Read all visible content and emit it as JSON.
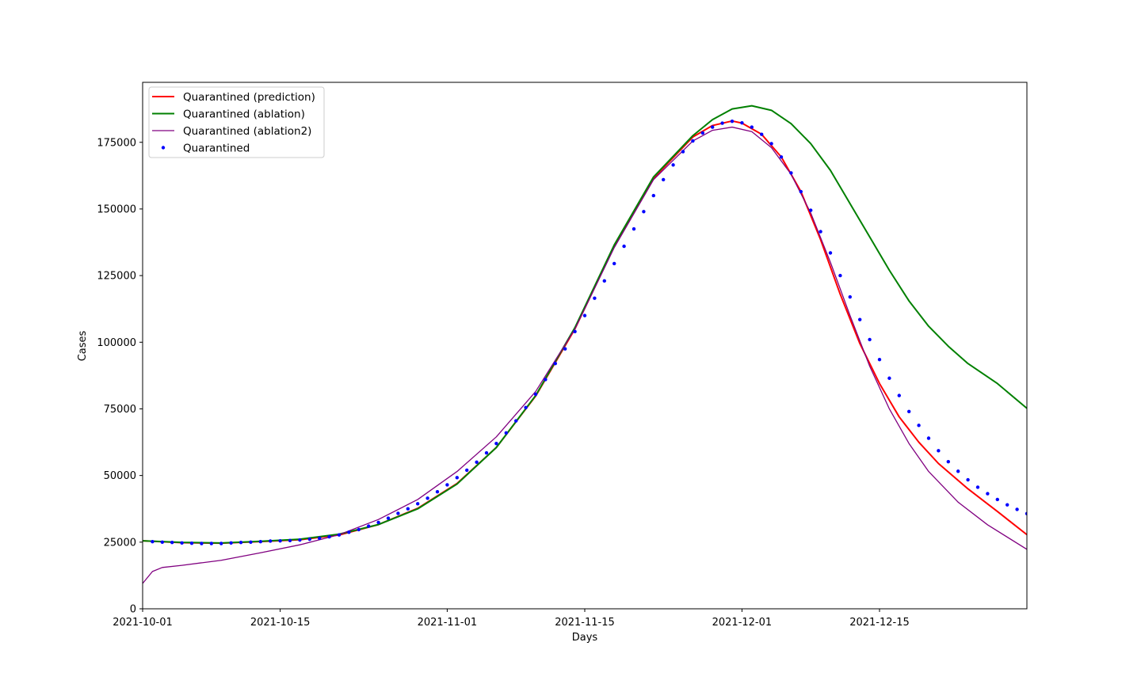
{
  "chart_data": {
    "type": "line",
    "title": "",
    "xlabel": "Days",
    "ylabel": "Cases",
    "x_start": "2021-10-01",
    "x_end": "2021-12-30",
    "xlim": [
      "2021-10-01",
      "2021-12-30"
    ],
    "ylim": [
      0,
      197500
    ],
    "x_ticks": [
      "2021-10-01",
      "2021-10-15",
      "2021-11-01",
      "2021-11-15",
      "2021-12-01",
      "2021-12-15"
    ],
    "y_ticks": [
      0,
      25000,
      50000,
      75000,
      100000,
      125000,
      150000,
      175000
    ],
    "y_tick_labels": [
      "0",
      "25000",
      "50000",
      "75000",
      "100000",
      "125000",
      "150000",
      "175000"
    ],
    "grid": false,
    "legend_position": "top-left",
    "series": [
      {
        "name": "Quarantined (prediction)",
        "style": "line",
        "color": "#ff0000",
        "points": [
          [
            "2021-10-01",
            25500
          ],
          [
            "2021-10-05",
            24800
          ],
          [
            "2021-10-09",
            24600
          ],
          [
            "2021-10-13",
            25200
          ],
          [
            "2021-10-17",
            25900
          ],
          [
            "2021-10-21",
            27700
          ],
          [
            "2021-10-25",
            31600
          ],
          [
            "2021-10-29",
            37700
          ],
          [
            "2021-11-02",
            47000
          ],
          [
            "2021-11-06",
            60500
          ],
          [
            "2021-11-10",
            79800
          ],
          [
            "2021-11-14",
            105000
          ],
          [
            "2021-11-18",
            136000
          ],
          [
            "2021-11-22",
            161500
          ],
          [
            "2021-11-26",
            177000
          ],
          [
            "2021-11-28",
            181300
          ],
          [
            "2021-11-30",
            183000
          ],
          [
            "2021-12-01",
            182200
          ],
          [
            "2021-12-03",
            178000
          ],
          [
            "2021-12-05",
            169500
          ],
          [
            "2021-12-07",
            156500
          ],
          [
            "2021-12-09",
            138500
          ],
          [
            "2021-12-11",
            118000
          ],
          [
            "2021-12-13",
            99500
          ],
          [
            "2021-12-15",
            84500
          ],
          [
            "2021-12-17",
            72000
          ],
          [
            "2021-12-19",
            62500
          ],
          [
            "2021-12-21",
            54500
          ],
          [
            "2021-12-24",
            45000
          ],
          [
            "2021-12-27",
            36500
          ],
          [
            "2021-12-30",
            27800
          ]
        ]
      },
      {
        "name": "Quarantined (ablation)",
        "style": "line",
        "color": "#008000",
        "points": [
          [
            "2021-10-01",
            25500
          ],
          [
            "2021-10-05",
            24900
          ],
          [
            "2021-10-09",
            24700
          ],
          [
            "2021-10-13",
            25300
          ],
          [
            "2021-10-17",
            26100
          ],
          [
            "2021-10-21",
            28000
          ],
          [
            "2021-10-25",
            31600
          ],
          [
            "2021-10-29",
            37500
          ],
          [
            "2021-11-02",
            46800
          ],
          [
            "2021-11-06",
            60500
          ],
          [
            "2021-11-10",
            80000
          ],
          [
            "2021-11-14",
            105500
          ],
          [
            "2021-11-18",
            136500
          ],
          [
            "2021-11-22",
            162000
          ],
          [
            "2021-11-26",
            177500
          ],
          [
            "2021-11-28",
            183500
          ],
          [
            "2021-11-30",
            187500
          ],
          [
            "2021-12-02",
            188700
          ],
          [
            "2021-12-04",
            187000
          ],
          [
            "2021-12-06",
            182000
          ],
          [
            "2021-12-08",
            174500
          ],
          [
            "2021-12-10",
            164500
          ],
          [
            "2021-12-12",
            152000
          ],
          [
            "2021-12-14",
            139500
          ],
          [
            "2021-12-16",
            127000
          ],
          [
            "2021-12-18",
            115500
          ],
          [
            "2021-12-20",
            106000
          ],
          [
            "2021-12-22",
            98500
          ],
          [
            "2021-12-24",
            92000
          ],
          [
            "2021-12-27",
            84500
          ],
          [
            "2021-12-30",
            75200
          ]
        ]
      },
      {
        "name": "Quarantined (ablation2)",
        "style": "line",
        "color": "#800080",
        "points": [
          [
            "2021-10-01",
            9500
          ],
          [
            "2021-10-02",
            14000
          ],
          [
            "2021-10-03",
            15500
          ],
          [
            "2021-10-05",
            16300
          ],
          [
            "2021-10-09",
            18200
          ],
          [
            "2021-10-13",
            21000
          ],
          [
            "2021-10-17",
            24000
          ],
          [
            "2021-10-21",
            27800
          ],
          [
            "2021-10-25",
            33500
          ],
          [
            "2021-10-29",
            41000
          ],
          [
            "2021-11-02",
            51500
          ],
          [
            "2021-11-06",
            64500
          ],
          [
            "2021-11-10",
            81500
          ],
          [
            "2021-11-14",
            105000
          ],
          [
            "2021-11-18",
            135500
          ],
          [
            "2021-11-22",
            161000
          ],
          [
            "2021-11-26",
            175500
          ],
          [
            "2021-11-28",
            179500
          ],
          [
            "2021-11-30",
            180700
          ],
          [
            "2021-12-02",
            179000
          ],
          [
            "2021-12-04",
            173000
          ],
          [
            "2021-12-06",
            163000
          ],
          [
            "2021-12-08",
            148500
          ],
          [
            "2021-12-10",
            130000
          ],
          [
            "2021-12-12",
            110000
          ],
          [
            "2021-12-14",
            91000
          ],
          [
            "2021-12-16",
            75000
          ],
          [
            "2021-12-18",
            62000
          ],
          [
            "2021-12-20",
            51500
          ],
          [
            "2021-12-23",
            40000
          ],
          [
            "2021-12-26",
            31500
          ],
          [
            "2021-12-30",
            22300
          ]
        ]
      },
      {
        "name": "Quarantined",
        "style": "dots",
        "color": "#0000ff",
        "points": [
          [
            "2021-10-02",
            25200
          ],
          [
            "2021-10-03",
            25000
          ],
          [
            "2021-10-04",
            24900
          ],
          [
            "2021-10-05",
            24700
          ],
          [
            "2021-10-06",
            24600
          ],
          [
            "2021-10-07",
            24500
          ],
          [
            "2021-10-08",
            24500
          ],
          [
            "2021-10-09",
            24500
          ],
          [
            "2021-10-10",
            24700
          ],
          [
            "2021-10-11",
            24900
          ],
          [
            "2021-10-12",
            25000
          ],
          [
            "2021-10-13",
            25200
          ],
          [
            "2021-10-14",
            25400
          ],
          [
            "2021-10-15",
            25500
          ],
          [
            "2021-10-16",
            25600
          ],
          [
            "2021-10-17",
            25800
          ],
          [
            "2021-10-18",
            26100
          ],
          [
            "2021-10-19",
            26500
          ],
          [
            "2021-10-20",
            27000
          ],
          [
            "2021-10-21",
            27700
          ],
          [
            "2021-10-22",
            28700
          ],
          [
            "2021-10-23",
            29700
          ],
          [
            "2021-10-24",
            31000
          ],
          [
            "2021-10-25",
            32400
          ],
          [
            "2021-10-26",
            34000
          ],
          [
            "2021-10-27",
            35800
          ],
          [
            "2021-10-28",
            37500
          ],
          [
            "2021-10-29",
            39400
          ],
          [
            "2021-10-30",
            41500
          ],
          [
            "2021-10-31",
            43900
          ],
          [
            "2021-11-01",
            46500
          ],
          [
            "2021-11-02",
            49200
          ],
          [
            "2021-11-03",
            52000
          ],
          [
            "2021-11-04",
            55000
          ],
          [
            "2021-11-05",
            58500
          ],
          [
            "2021-11-06",
            62000
          ],
          [
            "2021-11-07",
            66000
          ],
          [
            "2021-11-08",
            70500
          ],
          [
            "2021-11-09",
            75500
          ],
          [
            "2021-11-10",
            80500
          ],
          [
            "2021-11-11",
            86000
          ],
          [
            "2021-11-12",
            92000
          ],
          [
            "2021-11-13",
            97500
          ],
          [
            "2021-11-14",
            104000
          ],
          [
            "2021-11-15",
            110000
          ],
          [
            "2021-11-16",
            116500
          ],
          [
            "2021-11-17",
            123000
          ],
          [
            "2021-11-18",
            129500
          ],
          [
            "2021-11-19",
            136000
          ],
          [
            "2021-11-20",
            142500
          ],
          [
            "2021-11-21",
            149000
          ],
          [
            "2021-11-22",
            155000
          ],
          [
            "2021-11-23",
            161000
          ],
          [
            "2021-11-24",
            166500
          ],
          [
            "2021-11-25",
            171500
          ],
          [
            "2021-11-26",
            175500
          ],
          [
            "2021-11-27",
            178500
          ],
          [
            "2021-11-28",
            180700
          ],
          [
            "2021-11-29",
            182200
          ],
          [
            "2021-11-30",
            182900
          ],
          [
            "2021-12-01",
            182300
          ],
          [
            "2021-12-02",
            180700
          ],
          [
            "2021-12-03",
            178000
          ],
          [
            "2021-12-04",
            174500
          ],
          [
            "2021-12-05",
            169500
          ],
          [
            "2021-12-06",
            163500
          ],
          [
            "2021-12-07",
            156500
          ],
          [
            "2021-12-08",
            149500
          ],
          [
            "2021-12-09",
            141500
          ],
          [
            "2021-12-10",
            133500
          ],
          [
            "2021-12-11",
            125000
          ],
          [
            "2021-12-12",
            117000
          ],
          [
            "2021-12-13",
            108500
          ],
          [
            "2021-12-14",
            101000
          ],
          [
            "2021-12-15",
            93500
          ],
          [
            "2021-12-16",
            86500
          ],
          [
            "2021-12-17",
            80000
          ],
          [
            "2021-12-18",
            74000
          ],
          [
            "2021-12-19",
            68800
          ],
          [
            "2021-12-20",
            64000
          ],
          [
            "2021-12-21",
            59300
          ],
          [
            "2021-12-22",
            55200
          ],
          [
            "2021-12-23",
            51600
          ],
          [
            "2021-12-24",
            48400
          ],
          [
            "2021-12-25",
            45600
          ],
          [
            "2021-12-26",
            43200
          ],
          [
            "2021-12-27",
            41000
          ],
          [
            "2021-12-28",
            39000
          ],
          [
            "2021-12-29",
            37300
          ],
          [
            "2021-12-30",
            35700
          ],
          [
            "2021-12-31",
            34500
          ]
        ]
      }
    ]
  }
}
